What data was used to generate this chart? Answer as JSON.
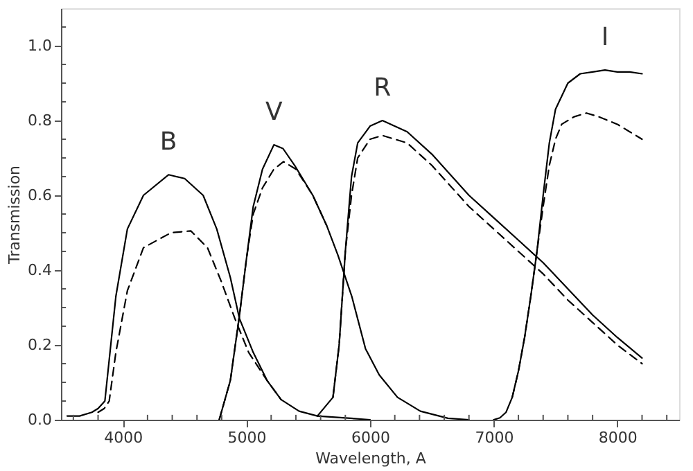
{
  "chart_data": {
    "type": "line",
    "xlabel": "Wavelength, A",
    "ylabel": "Transmission",
    "xlim": [
      3500,
      8500
    ],
    "ylim": [
      0,
      1.1
    ],
    "xticks": [
      {
        "value": 3600,
        "label": null
      },
      {
        "value": 3800,
        "label": null
      },
      4000,
      {
        "value": 4200,
        "label": null
      },
      {
        "value": 4400,
        "label": null
      },
      {
        "value": 4600,
        "label": null
      },
      {
        "value": 4800,
        "label": null
      },
      5000,
      {
        "value": 5200,
        "label": null
      },
      {
        "value": 5400,
        "label": null
      },
      {
        "value": 5600,
        "label": null
      },
      {
        "value": 5800,
        "label": null
      },
      6000,
      {
        "value": 6200,
        "label": null
      },
      {
        "value": 6400,
        "label": null
      },
      {
        "value": 6600,
        "label": null
      },
      {
        "value": 6800,
        "label": null
      },
      7000,
      {
        "value": 7200,
        "label": null
      },
      {
        "value": 7400,
        "label": null
      },
      {
        "value": 7600,
        "label": null
      },
      {
        "value": 7800,
        "label": null
      },
      8000,
      {
        "value": 8200,
        "label": null
      },
      {
        "value": 8400,
        "label": null
      }
    ],
    "yticks": [
      {
        "value": 0,
        "label": "0.0"
      },
      {
        "value": 0.05,
        "label": null
      },
      {
        "value": 0.1,
        "label": null
      },
      {
        "value": 0.15,
        "label": null
      },
      {
        "value": 0.2,
        "label": "0.2"
      },
      {
        "value": 0.25,
        "label": null
      },
      {
        "value": 0.3,
        "label": null
      },
      {
        "value": 0.35,
        "label": null
      },
      {
        "value": 0.4,
        "label": "0.4"
      },
      {
        "value": 0.45,
        "label": null
      },
      {
        "value": 0.5,
        "label": null
      },
      {
        "value": 0.55,
        "label": null
      },
      {
        "value": 0.6,
        "label": "0.6"
      },
      {
        "value": 0.65,
        "label": null
      },
      {
        "value": 0.7,
        "label": null
      },
      {
        "value": 0.75,
        "label": null
      },
      {
        "value": 0.8,
        "label": "0.8"
      },
      {
        "value": 0.85,
        "label": null
      },
      {
        "value": 0.9,
        "label": null
      },
      {
        "value": 0.95,
        "label": null
      },
      {
        "value": 1.0,
        "label": "1.0"
      },
      {
        "value": 1.05,
        "label": null
      }
    ],
    "grid": false,
    "marker": "none",
    "series": [
      {
        "name": "B",
        "color": "#000000",
        "line_style": "solid",
        "x": [
          3550,
          3650,
          3750,
          3800,
          3855,
          3890,
          3944,
          4037,
          4167,
          4370,
          4500,
          4650,
          4760,
          4870,
          4944,
          5055,
          5167,
          5280,
          5426,
          5574,
          5800,
          6000
        ],
        "values": [
          0.01,
          0.01,
          0.02,
          0.03,
          0.05,
          0.16,
          0.33,
          0.51,
          0.6,
          0.655,
          0.645,
          0.6,
          0.51,
          0.38,
          0.27,
          0.18,
          0.105,
          0.054,
          0.023,
          0.01,
          0.005,
          0
        ]
      },
      {
        "color": "#000000",
        "line_style": "dashed",
        "x": [
          3800,
          3850,
          3890,
          3944,
          4037,
          4167,
          4390,
          4550,
          4685,
          4796,
          4907,
          5018,
          5167,
          5280
        ],
        "values": [
          0.02,
          0.03,
          0.05,
          0.18,
          0.345,
          0.46,
          0.5,
          0.505,
          0.46,
          0.37,
          0.27,
          0.18,
          0.105,
          0.054
        ]
      },
      {
        "name": "V",
        "color": "#000000",
        "line_style": "solid",
        "x": [
          4780,
          4870,
          4944,
          5000,
          5055,
          5130,
          5222,
          5296,
          5390,
          5537,
          5648,
          5740,
          5852,
          5963,
          6074,
          6222,
          6407,
          6630,
          6800
        ],
        "values": [
          0,
          0.105,
          0.28,
          0.43,
          0.57,
          0.67,
          0.735,
          0.725,
          0.68,
          0.6,
          0.52,
          0.44,
          0.33,
          0.19,
          0.12,
          0.06,
          0.023,
          0.004,
          0
        ]
      },
      {
        "color": "#000000",
        "line_style": "dashed",
        "x": [
          4780,
          4870,
          4944,
          5000,
          5055,
          5130,
          5222,
          5300,
          5400,
          5537,
          5648
        ],
        "values": [
          0,
          0.105,
          0.28,
          0.43,
          0.55,
          0.62,
          0.67,
          0.69,
          0.67,
          0.6,
          0.52
        ]
      },
      {
        "name": "R",
        "color": "#000000",
        "line_style": "solid",
        "x": [
          5574,
          5700,
          5750,
          5800,
          5850,
          5900,
          6000,
          6100,
          6300,
          6500,
          6800,
          7000,
          7200,
          7400,
          7600,
          7800,
          8000,
          8200
        ],
        "values": [
          0.01,
          0.06,
          0.2,
          0.45,
          0.65,
          0.74,
          0.785,
          0.8,
          0.77,
          0.71,
          0.6,
          0.54,
          0.48,
          0.42,
          0.35,
          0.28,
          0.22,
          0.165
        ]
      },
      {
        "color": "#000000",
        "line_style": "dashed",
        "x": [
          5700,
          5750,
          5800,
          5850,
          5900,
          6000,
          6100,
          6300,
          6500,
          6800,
          7000,
          7200,
          7400,
          7600,
          7800,
          8000,
          8200
        ],
        "values": [
          0.06,
          0.2,
          0.45,
          0.6,
          0.7,
          0.75,
          0.76,
          0.74,
          0.68,
          0.57,
          0.51,
          0.45,
          0.39,
          0.32,
          0.26,
          0.2,
          0.15
        ]
      },
      {
        "name": "I",
        "color": "#000000",
        "line_style": "solid",
        "x": [
          7000,
          7050,
          7100,
          7150,
          7200,
          7250,
          7300,
          7350,
          7400,
          7450,
          7500,
          7600,
          7700,
          7800,
          7900,
          8000,
          8100,
          8200
        ],
        "values": [
          0,
          0.005,
          0.02,
          0.06,
          0.13,
          0.22,
          0.33,
          0.45,
          0.6,
          0.74,
          0.83,
          0.9,
          0.925,
          0.93,
          0.935,
          0.93,
          0.93,
          0.925
        ]
      },
      {
        "color": "#000000",
        "line_style": "dashed",
        "x": [
          7150,
          7200,
          7250,
          7300,
          7350,
          7400,
          7450,
          7500,
          7550,
          7650,
          7750,
          7850,
          8000,
          8100,
          8200
        ],
        "values": [
          0.06,
          0.13,
          0.22,
          0.33,
          0.45,
          0.57,
          0.68,
          0.75,
          0.79,
          0.81,
          0.82,
          0.81,
          0.79,
          0.77,
          0.75
        ]
      }
    ]
  }
}
